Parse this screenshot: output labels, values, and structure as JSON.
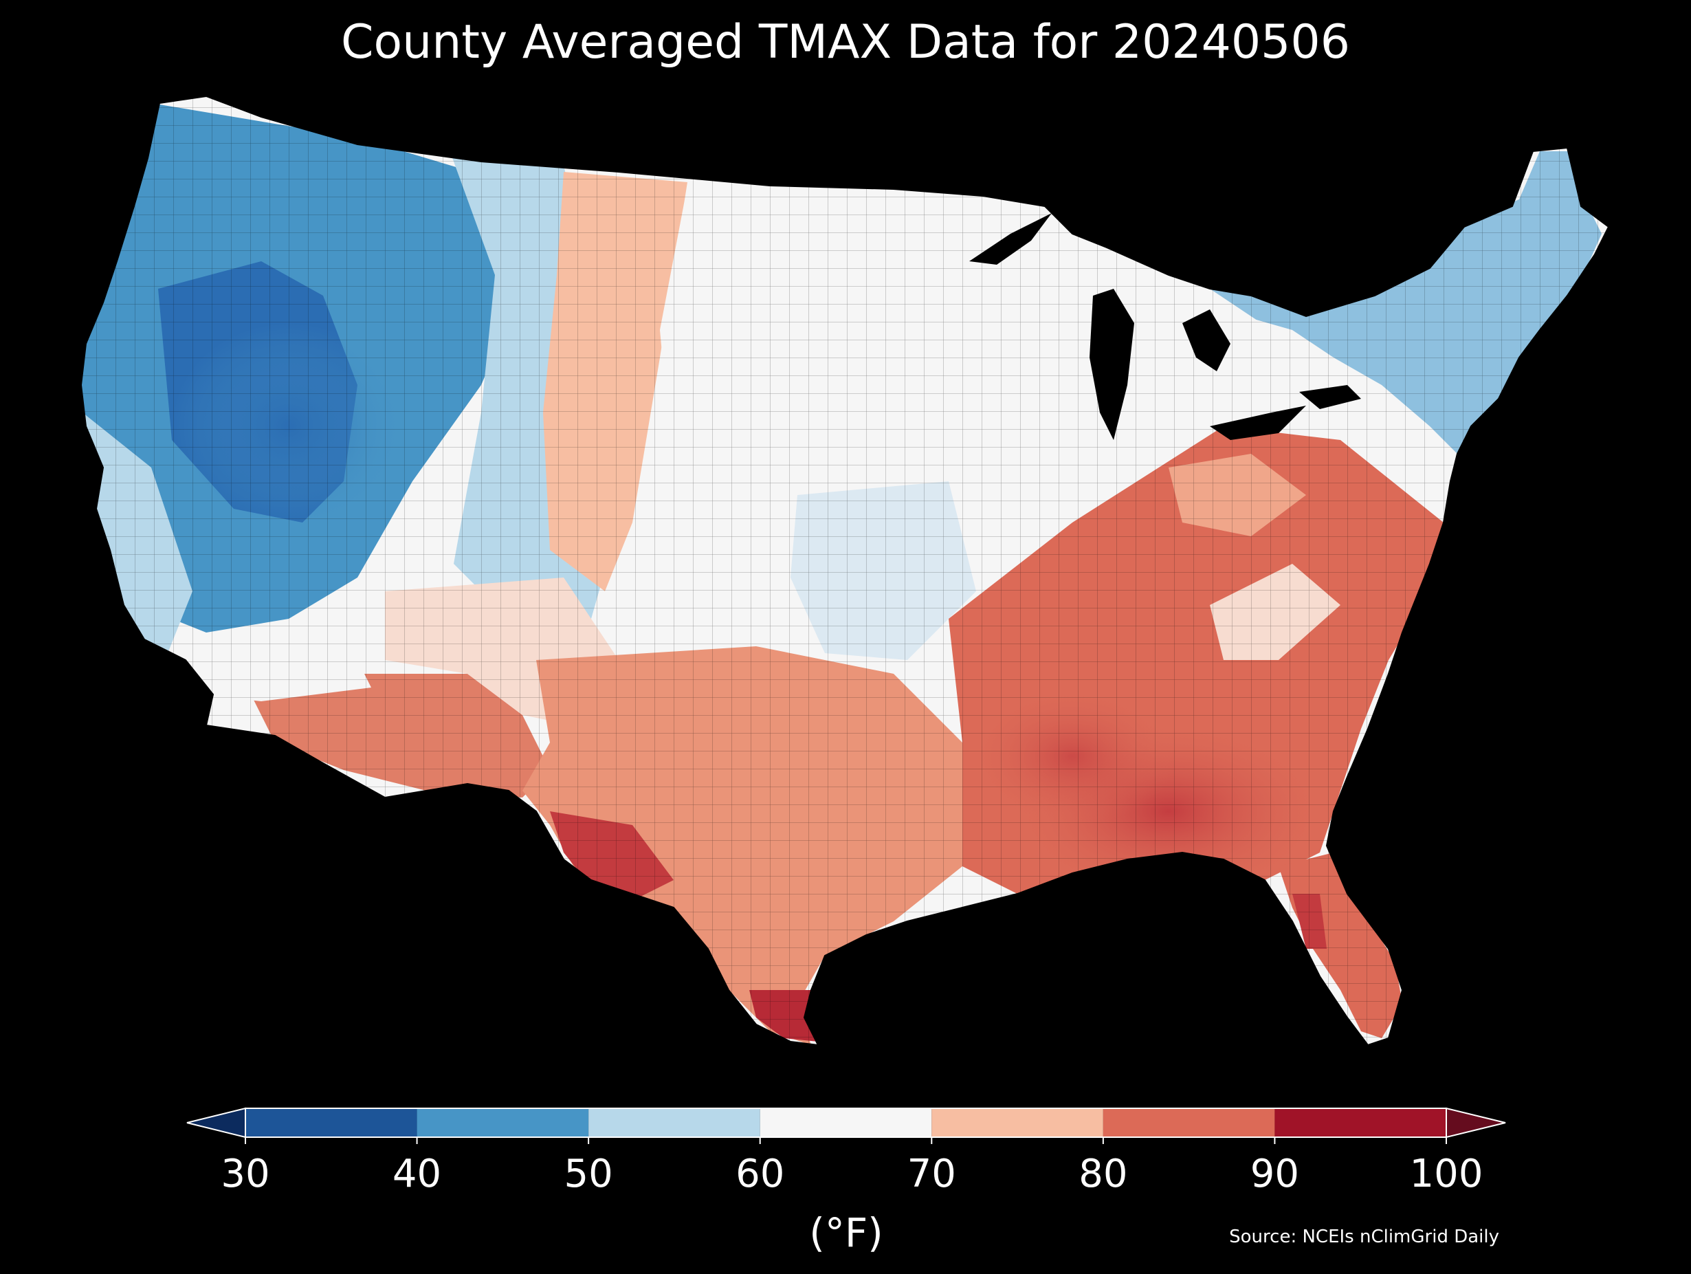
{
  "title": "County Averaged TMAX Data for 20240506",
  "source": "Source: NCEIs nClimGrid Daily",
  "colorbar": {
    "unit": "(°F)",
    "ticks": [
      "30",
      "40",
      "50",
      "60",
      "70",
      "80",
      "90",
      "100"
    ],
    "under_color": "#0c2b5e",
    "over_color": "#650c1e",
    "bins": [
      {
        "from": 30,
        "to": 40,
        "color": "#1d5598"
      },
      {
        "from": 40,
        "to": 50,
        "color": "#4795c6"
      },
      {
        "from": 50,
        "to": 60,
        "color": "#b7d8ea"
      },
      {
        "from": 60,
        "to": 70,
        "color": "#f6f6f6"
      },
      {
        "from": 70,
        "to": 80,
        "color": "#f7bea2"
      },
      {
        "from": 80,
        "to": 90,
        "color": "#dc6a57"
      },
      {
        "from": 90,
        "to": 100,
        "color": "#a01328"
      }
    ]
  },
  "map": {
    "ocean_color": "#000000",
    "region": "Contiguous United States",
    "pattern": [
      {
        "region": "northwest-interior",
        "tmax_band": "30-40"
      },
      {
        "region": "pacific-northwest",
        "tmax_band": "40-50"
      },
      {
        "region": "northern-rockies",
        "tmax_band": "50-60"
      },
      {
        "region": "northern-plains",
        "tmax_band": "70-80"
      },
      {
        "region": "midwest",
        "tmax_band": "60-70"
      },
      {
        "region": "central-plains",
        "tmax_band": "60-70"
      },
      {
        "region": "northeast",
        "tmax_band": "40-50"
      },
      {
        "region": "southwest",
        "tmax_band": "80-90"
      },
      {
        "region": "texas",
        "tmax_band": "80-90"
      },
      {
        "region": "southeast",
        "tmax_band": "80-90"
      },
      {
        "region": "gulf-coast",
        "tmax_band": "90-100"
      },
      {
        "region": "florida",
        "tmax_band": "80-90"
      }
    ]
  }
}
